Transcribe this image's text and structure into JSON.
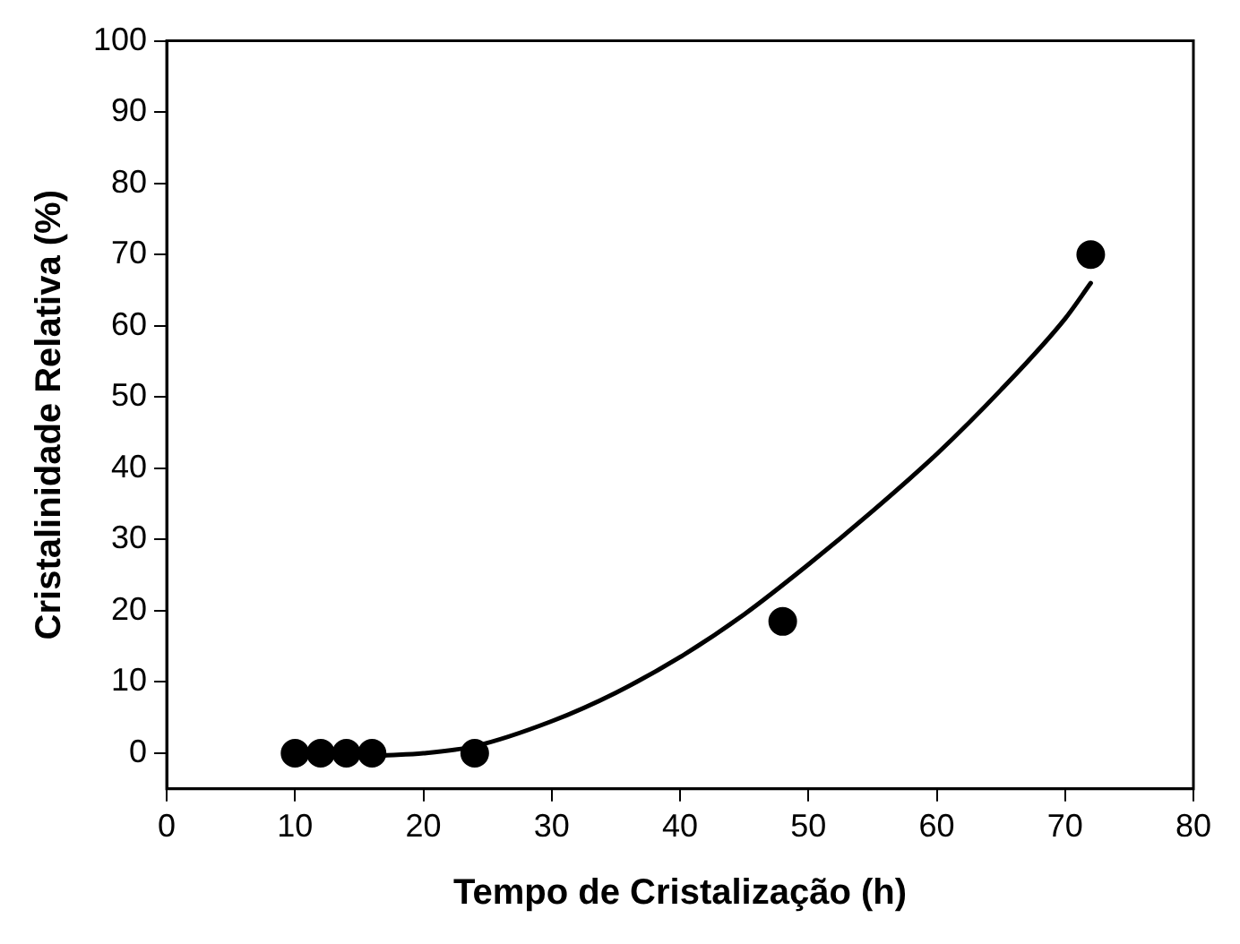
{
  "chart_data": {
    "type": "scatter",
    "xlabel": "Tempo de Cristalização (h)",
    "ylabel": "Cristalinidade Relativa (%)",
    "xlim": [
      0,
      80
    ],
    "xticks": [
      0,
      10,
      20,
      30,
      40,
      50,
      60,
      70,
      80
    ],
    "ylim": [
      -5,
      100
    ],
    "yticks": [
      0,
      10,
      20,
      30,
      40,
      50,
      60,
      70,
      80,
      90,
      100
    ],
    "grid": false,
    "legend": false,
    "marker": "circle",
    "series": [
      {
        "color": "#000000",
        "x": [
          10,
          12,
          14,
          16,
          24,
          48,
          72
        ],
        "values": [
          0,
          0,
          0,
          0,
          0,
          18.5,
          70
        ]
      },
      {
        "type": "line",
        "color": "#000000",
        "marker": "none",
        "line_style": "solid",
        "x": [
          17,
          20,
          24,
          30,
          35,
          40,
          45,
          50,
          55,
          60,
          65,
          70,
          72
        ],
        "values": [
          -0.3,
          0,
          1,
          4.5,
          8.5,
          13.5,
          19.5,
          26.5,
          34,
          42,
          51,
          61,
          66
        ]
      }
    ]
  }
}
